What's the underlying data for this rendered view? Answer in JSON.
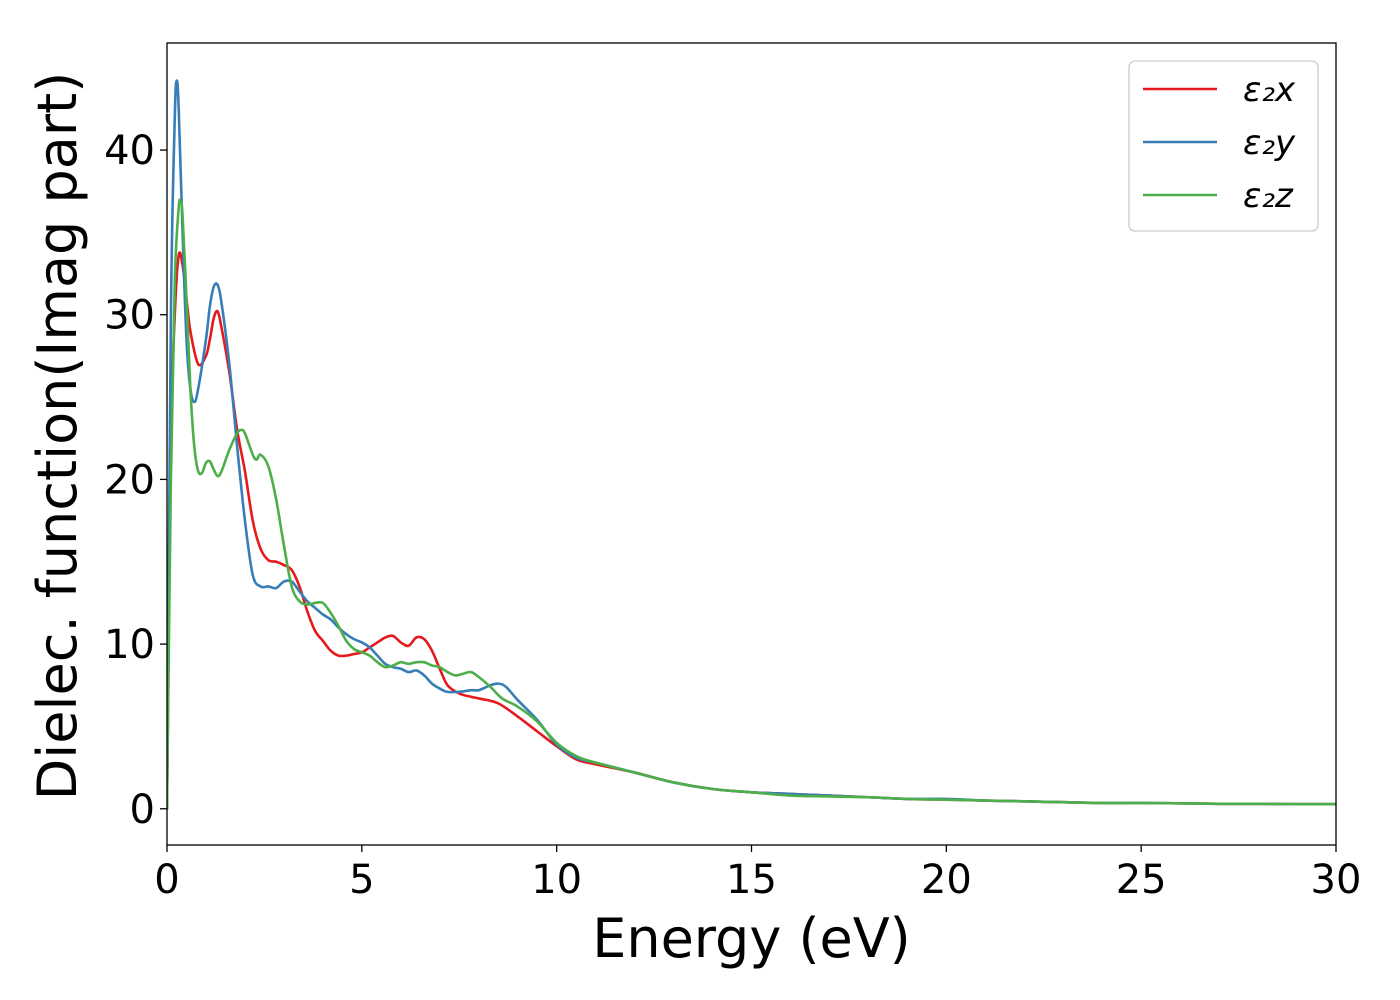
{
  "chart_data": {
    "type": "line",
    "title": "",
    "xlabel": "Energy (eV)",
    "ylabel": "Dielec. function(Imag part)",
    "xlim": [
      0,
      30
    ],
    "ylim": [
      -2.2,
      46.5
    ],
    "xticks": [
      0,
      5,
      10,
      15,
      20,
      25,
      30
    ],
    "yticks": [
      0,
      10,
      20,
      30,
      40
    ],
    "grid": false,
    "legend_position": "top-right",
    "series": [
      {
        "name": "ε₂x",
        "color": "#e41a1c",
        "x": [
          0,
          0.1,
          0.2,
          0.3,
          0.4,
          0.5,
          0.6,
          0.8,
          1.0,
          1.1,
          1.2,
          1.3,
          1.4,
          1.6,
          1.8,
          2.0,
          2.2,
          2.4,
          2.6,
          2.8,
          3.0,
          3.2,
          3.4,
          3.6,
          3.8,
          4.0,
          4.2,
          4.4,
          4.6,
          4.8,
          5.0,
          5.2,
          5.4,
          5.6,
          5.8,
          6.0,
          6.2,
          6.4,
          6.6,
          6.8,
          7.0,
          7.2,
          7.5,
          7.8,
          8.0,
          8.5,
          9.0,
          9.5,
          10.0,
          10.5,
          11.0,
          12.0,
          13.0,
          14.0,
          15.0,
          16.0,
          17.0,
          18.0,
          19.0,
          20.0,
          21.0,
          22.0,
          23.0,
          24.0,
          25.0,
          26.0,
          27.0,
          28.0,
          29.0,
          30.0
        ],
        "y": [
          0,
          22,
          30,
          33.6,
          33,
          31,
          29,
          27,
          27.5,
          28.5,
          29.8,
          30.2,
          29.2,
          26.5,
          23,
          20.5,
          17.5,
          15.8,
          15.1,
          15.0,
          14.8,
          14.5,
          13.5,
          12,
          10.8,
          10.2,
          9.6,
          9.3,
          9.3,
          9.4,
          9.5,
          9.8,
          10.1,
          10.4,
          10.5,
          10.1,
          9.9,
          10.4,
          10.3,
          9.6,
          8.5,
          7.5,
          7.0,
          6.8,
          6.7,
          6.4,
          5.6,
          4.7,
          3.8,
          3.0,
          2.7,
          2.2,
          1.6,
          1.2,
          1.0,
          0.9,
          0.8,
          0.7,
          0.6,
          0.55,
          0.5,
          0.45,
          0.4,
          0.35,
          0.35,
          0.33,
          0.3,
          0.3,
          0.28,
          0.28
        ]
      },
      {
        "name": "ε₂y",
        "color": "#377eb8",
        "x": [
          0,
          0.1,
          0.2,
          0.25,
          0.3,
          0.4,
          0.5,
          0.6,
          0.7,
          0.8,
          1.0,
          1.1,
          1.2,
          1.3,
          1.4,
          1.6,
          1.8,
          2.0,
          2.2,
          2.4,
          2.6,
          2.8,
          3.0,
          3.2,
          3.4,
          3.6,
          3.8,
          4.0,
          4.2,
          4.4,
          4.6,
          4.8,
          5.0,
          5.2,
          5.4,
          5.6,
          5.8,
          6.0,
          6.2,
          6.4,
          6.6,
          6.8,
          7.0,
          7.2,
          7.5,
          7.8,
          8.0,
          8.3,
          8.5,
          8.7,
          9.0,
          9.5,
          10.0,
          10.5,
          11.0,
          12.0,
          13.0,
          14.0,
          15.0,
          16.0,
          17.0,
          18.0,
          19.0,
          20.0,
          21.0,
          22.0,
          23.0,
          24.0,
          25.0,
          26.0,
          27.0,
          28.0,
          29.0,
          30.0
        ],
        "y": [
          0,
          30,
          42,
          44.2,
          42.5,
          35,
          28.5,
          25.5,
          24.7,
          25.5,
          28.5,
          30.5,
          31.7,
          31.8,
          30.7,
          27,
          22,
          17.5,
          14.2,
          13.5,
          13.5,
          13.4,
          13.8,
          13.8,
          13.2,
          12.6,
          12.2,
          11.8,
          11.5,
          11.0,
          10.6,
          10.3,
          10.1,
          9.8,
          9.3,
          8.8,
          8.6,
          8.5,
          8.3,
          8.4,
          8.1,
          7.6,
          7.3,
          7.1,
          7.1,
          7.2,
          7.2,
          7.5,
          7.6,
          7.4,
          6.6,
          5.4,
          3.9,
          3.1,
          2.8,
          2.2,
          1.6,
          1.2,
          1.0,
          0.9,
          0.8,
          0.7,
          0.6,
          0.6,
          0.5,
          0.45,
          0.4,
          0.35,
          0.35,
          0.33,
          0.3,
          0.3,
          0.28,
          0.28
        ]
      },
      {
        "name": "ε₂z",
        "color": "#4daf4a",
        "x": [
          0,
          0.1,
          0.2,
          0.3,
          0.35,
          0.4,
          0.5,
          0.6,
          0.7,
          0.8,
          0.9,
          1.0,
          1.1,
          1.2,
          1.3,
          1.4,
          1.6,
          1.8,
          1.9,
          2.0,
          2.2,
          2.3,
          2.4,
          2.6,
          2.8,
          3.0,
          3.2,
          3.4,
          3.6,
          3.8,
          4.0,
          4.2,
          4.4,
          4.6,
          4.8,
          5.0,
          5.2,
          5.4,
          5.6,
          5.8,
          6.0,
          6.2,
          6.4,
          6.6,
          6.8,
          7.0,
          7.2,
          7.4,
          7.6,
          7.8,
          8.0,
          8.3,
          8.6,
          9.0,
          9.5,
          10.0,
          10.5,
          11.0,
          12.0,
          13.0,
          14.0,
          15.0,
          16.0,
          17.0,
          18.0,
          19.0,
          20.0,
          21.0,
          22.0,
          23.0,
          24.0,
          25.0,
          26.0,
          27.0,
          28.0,
          29.0,
          30.0
        ],
        "y": [
          0,
          20,
          32,
          36.5,
          36.8,
          36,
          31,
          25.5,
          22,
          20.5,
          20.4,
          21,
          21.1,
          20.6,
          20.2,
          20.5,
          21.8,
          22.8,
          23.0,
          22.8,
          21.5,
          21.2,
          21.5,
          20.8,
          18.8,
          16.0,
          13.5,
          12.6,
          12.4,
          12.5,
          12.5,
          11.9,
          11.1,
          10.2,
          9.7,
          9.5,
          9.3,
          8.9,
          8.6,
          8.7,
          8.9,
          8.8,
          8.9,
          8.9,
          8.7,
          8.6,
          8.3,
          8.1,
          8.2,
          8.3,
          8.0,
          7.4,
          6.7,
          6.2,
          5.3,
          4.0,
          3.2,
          2.8,
          2.2,
          1.6,
          1.2,
          1.0,
          0.8,
          0.75,
          0.7,
          0.6,
          0.55,
          0.5,
          0.45,
          0.4,
          0.35,
          0.35,
          0.33,
          0.3,
          0.3,
          0.28,
          0.28
        ]
      }
    ]
  }
}
